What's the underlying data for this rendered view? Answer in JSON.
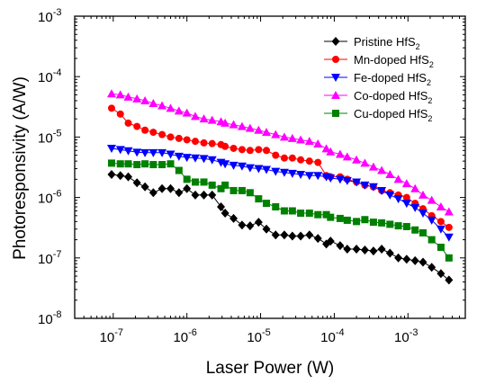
{
  "chart_data": {
    "type": "scatter",
    "xlabel": "Laser Power (W)",
    "ylabel": "Photoresponsivity (A/W)",
    "xscale": "log",
    "yscale": "log",
    "xlim": [
      3e-08,
      0.006
    ],
    "ylim": [
      1e-08,
      0.001
    ],
    "x_ticks": [
      {
        "value": 1e-07,
        "base": "10",
        "exp": "-7"
      },
      {
        "value": 1e-06,
        "base": "10",
        "exp": "-6"
      },
      {
        "value": 1e-05,
        "base": "10",
        "exp": "-5"
      },
      {
        "value": 0.0001,
        "base": "10",
        "exp": "-4"
      },
      {
        "value": 0.001,
        "base": "10",
        "exp": "-3"
      }
    ],
    "y_ticks": [
      {
        "value": 1e-08,
        "base": "10",
        "exp": "-8"
      },
      {
        "value": 1e-07,
        "base": "10",
        "exp": "-7"
      },
      {
        "value": 1e-06,
        "base": "10",
        "exp": "-6"
      },
      {
        "value": 1e-05,
        "base": "10",
        "exp": "-5"
      },
      {
        "value": 0.0001,
        "base": "10",
        "exp": "-4"
      },
      {
        "value": 0.001,
        "base": "10",
        "exp": "-3"
      }
    ],
    "grid": false,
    "legend_position": "top-right",
    "x": [
      9.5e-08,
      1.25e-07,
      1.6e-07,
      2.1e-07,
      2.7e-07,
      3.5e-07,
      4.6e-07,
      6e-07,
      7.8e-07,
      1e-06,
      1.3e-06,
      1.7e-06,
      2.2e-06,
      2.9e-06,
      3.3e-06,
      4.3e-06,
      5.6e-06,
      7.2e-06,
      9.4e-06,
      1.2e-05,
      1.6e-05,
      2.1e-05,
      2.7e-05,
      3.5e-05,
      4.6e-05,
      6e-05,
      7.8e-05,
      8.9e-05,
      0.00012,
      0.00015,
      0.0002,
      0.00026,
      0.00034,
      0.00044,
      0.00057,
      0.00074,
      0.00096,
      0.00125,
      0.0016,
      0.0021,
      0.0028,
      0.0036
    ],
    "series": [
      {
        "name": "Pristine HfS",
        "name_sub": "2",
        "color": "#000000",
        "marker": "diamond",
        "values": [
          2.4e-06,
          2.3e-06,
          2.2e-06,
          1.75e-06,
          1.5e-06,
          1.2e-06,
          1.4e-06,
          1.4e-06,
          1.2e-06,
          1.4e-06,
          1.1e-06,
          1.1e-06,
          1.1e-06,
          7e-07,
          5.5e-07,
          4.5e-07,
          3.5e-07,
          3.4e-07,
          3.9e-07,
          3e-07,
          2.4e-07,
          2.4e-07,
          2.3e-07,
          2.3e-07,
          2.4e-07,
          2.1e-07,
          1.7e-07,
          1.9e-07,
          1.6e-07,
          1.4e-07,
          1.4e-07,
          1.35e-07,
          1.3e-07,
          1.4e-07,
          1.2e-07,
          1e-07,
          9.5e-08,
          9e-08,
          8.5e-08,
          7e-08,
          5.5e-08,
          4.3e-08
        ]
      },
      {
        "name": "Mn-doped HfS",
        "name_sub": "2",
        "color": "#ff0000",
        "marker": "circle",
        "values": [
          3e-05,
          2.4e-05,
          1.7e-05,
          1.5e-05,
          1.3e-05,
          1.2e-05,
          1.1e-05,
          1e-05,
          9.5e-06,
          9e-06,
          8.5e-06,
          8e-06,
          7.8e-06,
          7.5e-06,
          7e-06,
          6.5e-06,
          6.2e-06,
          6e-06,
          6.2e-06,
          6e-06,
          5e-06,
          4.5e-06,
          4.5e-06,
          4.2e-06,
          4e-06,
          3.8e-06,
          2.3e-06,
          2.2e-06,
          2.2e-06,
          2e-06,
          1.8e-06,
          1.6e-06,
          1.5e-06,
          1.3e-06,
          1.2e-06,
          1.1e-06,
          1e-06,
          8e-07,
          6.5e-07,
          5e-07,
          4e-07,
          3.2e-07
        ]
      },
      {
        "name": "Fe-doped HfS",
        "name_sub": "2",
        "color": "#0000ff",
        "marker": "triangle-down",
        "values": [
          6.5e-06,
          6.2e-06,
          5.9e-06,
          5.6e-06,
          5.5e-06,
          5.5e-06,
          5.5e-06,
          5.2e-06,
          4.8e-06,
          4.6e-06,
          4.5e-06,
          4.4e-06,
          4.2e-06,
          3.8e-06,
          3.6e-06,
          3.4e-06,
          3.3e-06,
          3.1e-06,
          3e-06,
          2.9e-06,
          2.7e-06,
          2.6e-06,
          2.5e-06,
          2.4e-06,
          2.3e-06,
          2.3e-06,
          2.2e-06,
          2.1e-06,
          2e-06,
          1.9e-06,
          1.8e-06,
          1.6e-06,
          1.5e-06,
          1.3e-06,
          1.1e-06,
          9.5e-07,
          8e-07,
          6.8e-07,
          5.5e-07,
          4.2e-07,
          3e-07,
          2.2e-07
        ]
      },
      {
        "name": "Co-doped HfS",
        "name_sub": "2",
        "color": "#ff00ff",
        "marker": "triangle-up",
        "values": [
          5.2e-05,
          5e-05,
          4.6e-05,
          4.3e-05,
          4e-05,
          3.6e-05,
          3.3e-05,
          3e-05,
          2.7e-05,
          2.5e-05,
          2.2e-05,
          2e-05,
          1.9e-05,
          1.8e-05,
          1.7e-05,
          1.6e-05,
          1.5e-05,
          1.4e-05,
          1.3e-05,
          1.2e-05,
          1.1e-05,
          1e-05,
          9.5e-06,
          9e-06,
          8.5e-06,
          7.7e-06,
          6.4e-06,
          5.7e-06,
          5.2e-06,
          4.7e-06,
          4.2e-06,
          3.7e-06,
          3.2e-06,
          2.8e-06,
          2.4e-06,
          2e-06,
          1.7e-06,
          1.4e-06,
          1.1e-06,
          9e-07,
          7e-07,
          5.8e-07
        ]
      },
      {
        "name": "Cu-doped HfS",
        "name_sub": "2",
        "color": "#008000",
        "marker": "square",
        "values": [
          3.7e-06,
          3.6e-06,
          3.6e-06,
          3.5e-06,
          3.6e-06,
          3.5e-06,
          3.5e-06,
          3.6e-06,
          2.8e-06,
          2e-06,
          1.8e-06,
          1.8e-06,
          1.6e-06,
          1.4e-06,
          1.6e-06,
          1.3e-06,
          1.3e-06,
          1.2e-06,
          9.5e-07,
          8e-07,
          7e-07,
          6e-07,
          6e-07,
          5.5e-07,
          5.5e-07,
          5.2e-07,
          5.2e-07,
          4.7e-07,
          4.5e-07,
          4.2e-07,
          4e-07,
          4.3e-07,
          3.9e-07,
          3.8e-07,
          3.6e-07,
          3.4e-07,
          3.3e-07,
          2.9e-07,
          2.6e-07,
          2e-07,
          1.5e-07,
          1e-07
        ]
      }
    ]
  }
}
